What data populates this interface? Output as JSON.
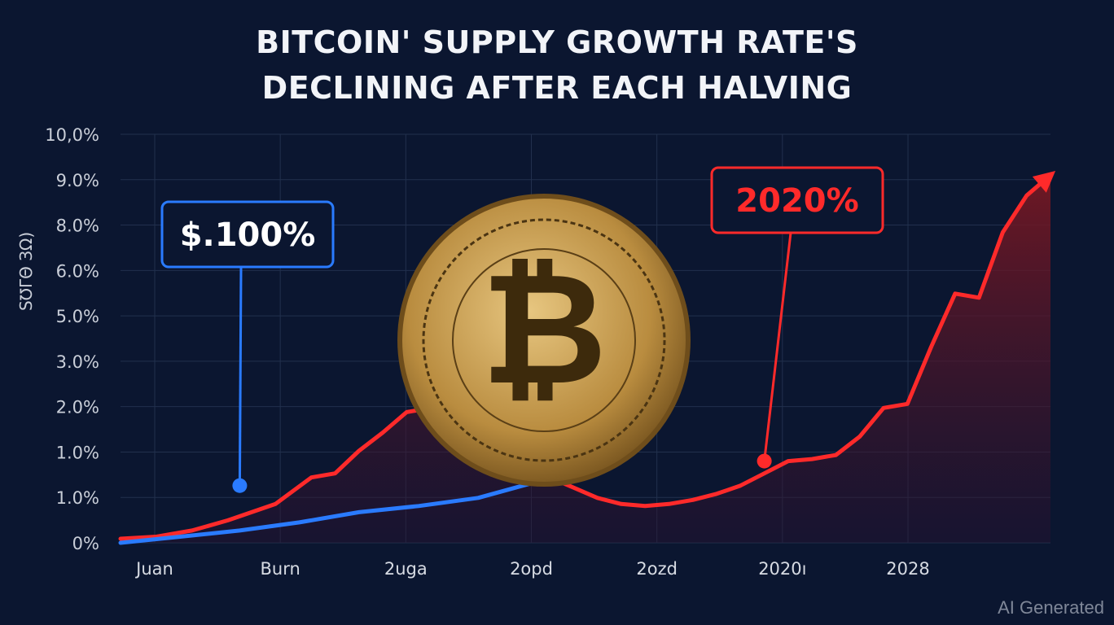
{
  "title_line1": "BITCOIN' SUPPLY GROWTH RATE'S",
  "title_line2": "DECLINING AFTER EACH HALVING",
  "watermark": "AI Generated",
  "colors": {
    "background": "#0b1630",
    "red_series": "#ff2a2a",
    "blue_series": "#2a7bff",
    "coin": "#c9a45a",
    "grid": "#22304d"
  },
  "chart_data": {
    "type": "line",
    "title": "BITCOIN' SUPPLY GROWTH RATE'S DECLINING AFTER EACH HALVING",
    "ylabel": "S℧ΓΘ ЗΩ)",
    "x_tick_labels": [
      "Juan",
      "Burn",
      "2uga",
      "2opd",
      "2ozd",
      "2020ı",
      "2028"
    ],
    "y_tick_labels": [
      "0%",
      "1.0%",
      "1.0%",
      "2.0%",
      "3.0%",
      "5.0%",
      "6.0%",
      "8.0%",
      "9.0%",
      "10,0%"
    ],
    "grid": true,
    "series": [
      {
        "color": "#ff2a2a",
        "x": [
          0,
          0.3,
          0.6,
          0.9,
          1.0,
          1.3,
          1.6,
          1.8,
          2.0,
          2.2,
          2.4,
          2.6,
          2.8,
          3.0,
          3.2,
          3.4,
          3.6,
          3.8,
          4.0,
          4.2,
          4.4,
          4.6,
          4.8,
          5.0,
          5.2,
          5.4,
          5.6,
          5.8,
          6.0,
          6.2,
          6.4,
          6.6,
          6.8,
          7.0,
          7.2,
          7.4,
          7.6,
          7.8
        ],
        "y": [
          0.1,
          0.15,
          0.3,
          0.55,
          0.65,
          0.95,
          1.6,
          1.7,
          2.25,
          2.7,
          3.2,
          3.3,
          3.1,
          2.9,
          2.4,
          2.0,
          1.6,
          1.35,
          1.1,
          0.95,
          0.9,
          0.95,
          1.05,
          1.2,
          1.4,
          1.7,
          2.0,
          2.05,
          2.15,
          2.6,
          3.3,
          3.4,
          4.8,
          6.1,
          6.0,
          7.6,
          8.5,
          9.0
        ]
      },
      {
        "color": "#2a7bff",
        "x": [
          0,
          0.5,
          1.0,
          1.5,
          2.0,
          2.5,
          3.0,
          3.5,
          3.9
        ],
        "y": [
          0.0,
          0.15,
          0.3,
          0.5,
          0.75,
          0.9,
          1.1,
          1.5,
          1.9
        ]
      }
    ],
    "annotations": [
      {
        "label": "$.100%",
        "color": "#2a7bff",
        "point": {
          "x": 1.0,
          "y": 1.4
        }
      },
      {
        "label": "2020%",
        "color": "#ff2a2a",
        "point": {
          "x": 5.4,
          "y": 2.0
        }
      }
    ],
    "image": "bitcoin-coin"
  }
}
